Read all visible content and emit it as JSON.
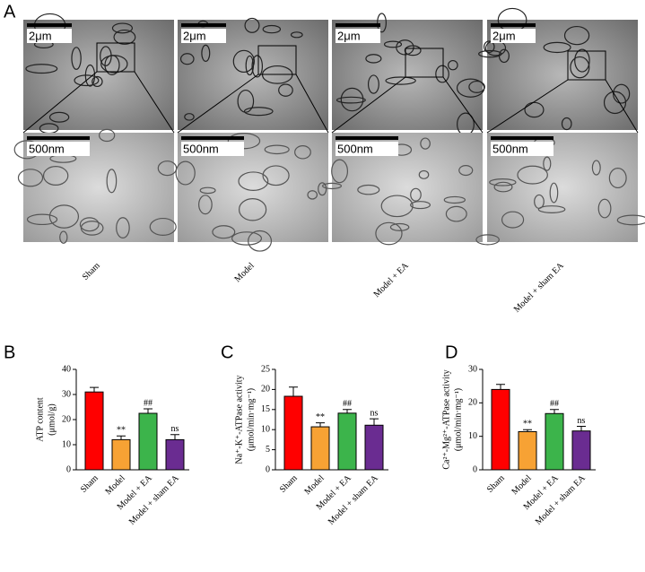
{
  "panel_labels": [
    "A",
    "B",
    "C",
    "D"
  ],
  "micrographs": {
    "groups": [
      "Sham",
      "Model",
      "Model + EA",
      "Model + sham EA"
    ],
    "scale_top": "2μm",
    "scale_bottom": "500nm"
  },
  "chart_data": [
    {
      "type": "bar",
      "ylabel": [
        "ATP content",
        "(μmol/g)"
      ],
      "categories": [
        "Sham",
        "Model",
        "Model + EA",
        "Model + sham EA"
      ],
      "values": [
        31,
        12,
        22.5,
        12
      ],
      "errors": [
        1.8,
        1.5,
        1.8,
        2
      ],
      "annotations": [
        null,
        "**",
        "##",
        "ns"
      ],
      "colors": [
        "#ff0000",
        "#f7a234",
        "#3cb44b",
        "#6a2c91"
      ],
      "ylim": [
        0,
        40
      ],
      "yticks": [
        0,
        10,
        20,
        30,
        40
      ]
    },
    {
      "type": "bar",
      "ylabel": [
        "Na⁺-K⁺-ATPase activity",
        "(μmol/min·mg⁻¹)"
      ],
      "categories": [
        "Sham",
        "Model",
        "Model + EA",
        "Model + sham EA"
      ],
      "values": [
        18.3,
        10.7,
        14.1,
        11.1
      ],
      "errors": [
        2.3,
        1.0,
        0.9,
        1.6
      ],
      "annotations": [
        null,
        "**",
        "##",
        "ns"
      ],
      "colors": [
        "#ff0000",
        "#f7a234",
        "#3cb44b",
        "#6a2c91"
      ],
      "ylim": [
        0,
        25
      ],
      "yticks": [
        0,
        5,
        10,
        15,
        20,
        25
      ]
    },
    {
      "type": "bar",
      "ylabel": [
        "Ca²⁺-Mg²⁺-ATPase activity",
        "(μmol/min·mg⁻¹)"
      ],
      "categories": [
        "Sham",
        "Model",
        "Model + EA",
        "Model + sham EA"
      ],
      "values": [
        24,
        11.4,
        16.8,
        11.6
      ],
      "errors": [
        1.5,
        0.6,
        1.2,
        1.4
      ],
      "annotations": [
        null,
        "**",
        "##",
        "ns"
      ],
      "colors": [
        "#ff0000",
        "#f7a234",
        "#3cb44b",
        "#6a2c91"
      ],
      "ylim": [
        0,
        30
      ],
      "yticks": [
        0,
        10,
        20,
        30
      ]
    }
  ]
}
